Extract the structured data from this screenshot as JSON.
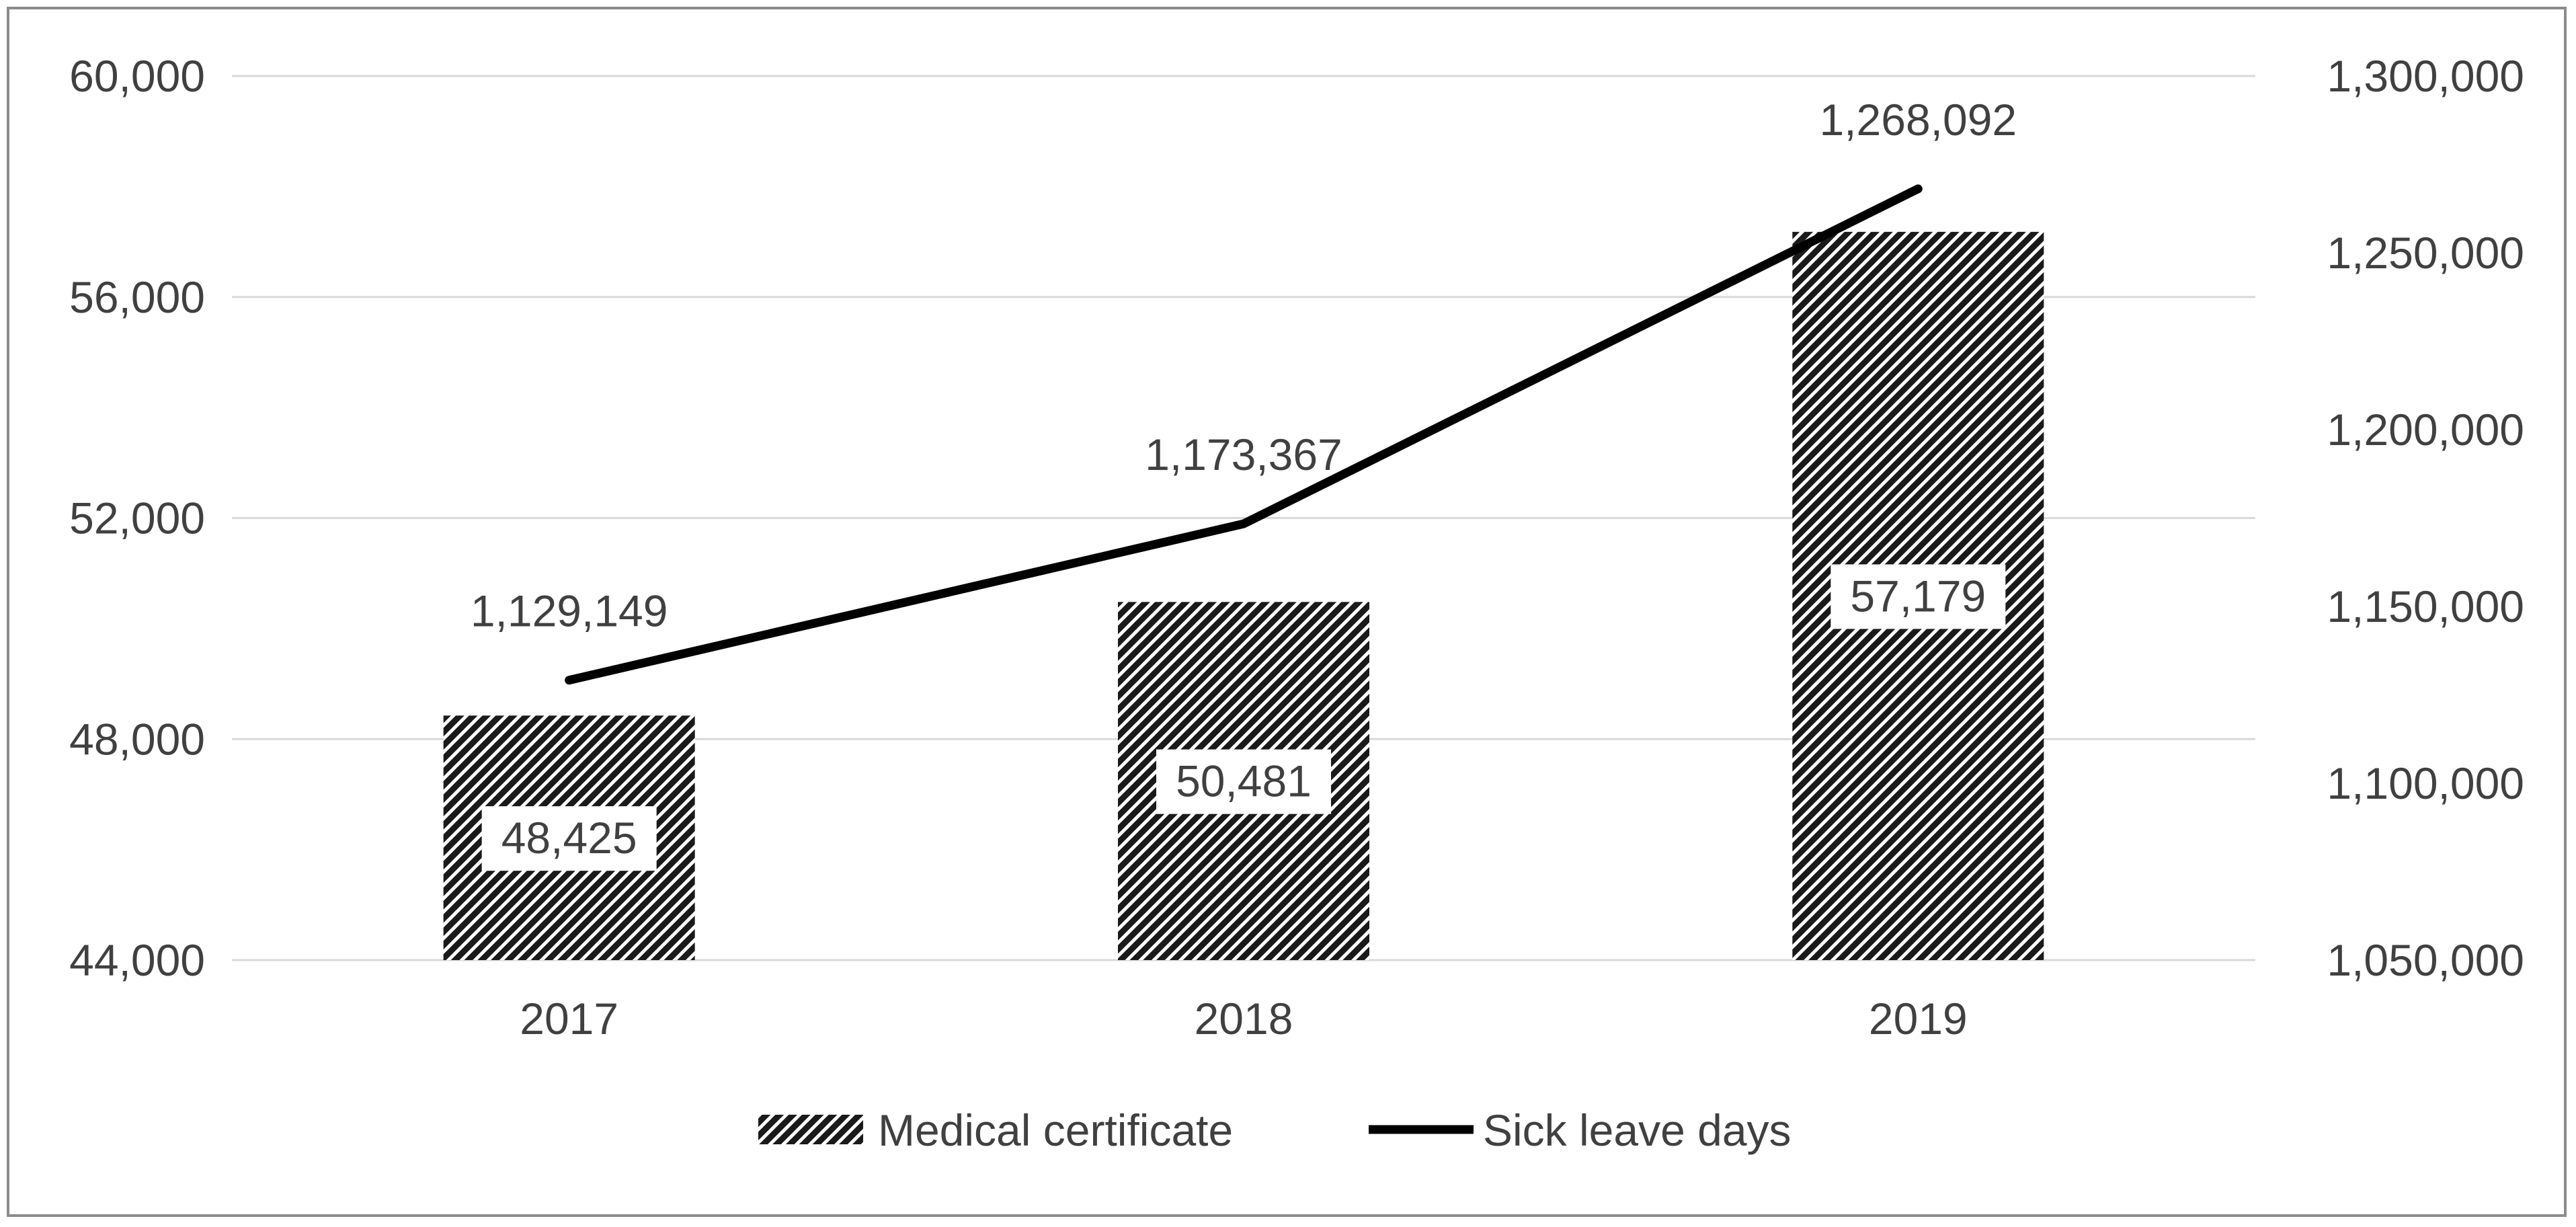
{
  "chart_data": {
    "type": "bar",
    "categories": [
      "2017",
      "2018",
      "2019"
    ],
    "series": [
      {
        "name": "Medical certificate",
        "type": "bar",
        "axis": "left",
        "values": [
          48425,
          50481,
          57179
        ],
        "labels": [
          "48,425",
          "50,481",
          "57,179"
        ]
      },
      {
        "name": "Sick leave days",
        "type": "line",
        "axis": "right",
        "values": [
          1129149,
          1173367,
          1268092
        ],
        "labels": [
          "1,129,149",
          "1,173,367",
          "1,268,092"
        ]
      }
    ],
    "y_left": {
      "min": 44000,
      "max": 60000,
      "ticks": [
        "44,000",
        "48,000",
        "52,000",
        "56,000",
        "60,000"
      ],
      "tick_values": [
        44000,
        48000,
        52000,
        56000,
        60000
      ]
    },
    "y_right": {
      "min": 1050000,
      "max": 1300000,
      "ticks": [
        "1,050,000",
        "1,100,000",
        "1,150,000",
        "1,200,000",
        "1,250,000",
        "1,300,000"
      ],
      "tick_values": [
        1050000,
        1100000,
        1150000,
        1200000,
        1250000,
        1300000
      ]
    },
    "grid": true,
    "legend_position": "bottom",
    "colors": {
      "bar": "#1a1a1a",
      "line": "#000000",
      "grid": "#d9d9d9",
      "text": "#404040"
    }
  }
}
